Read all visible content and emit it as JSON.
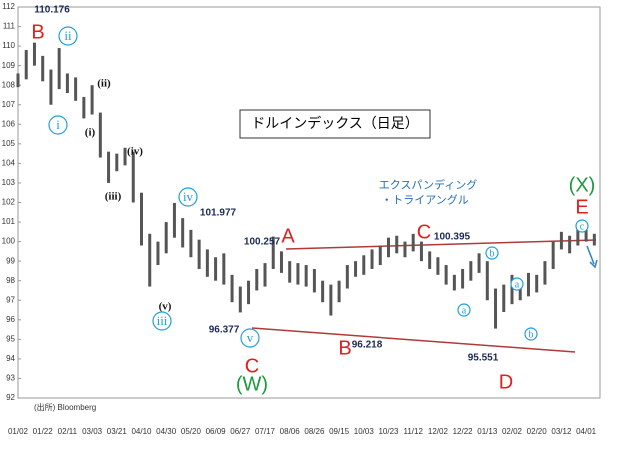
{
  "chart_data": {
    "type": "hilo",
    "title": "ドルインデックス（日足）",
    "note": [
      "エクスパンディング",
      "・トライアングル"
    ],
    "source": "(出所) Bloomberg",
    "color": "#555555",
    "categories": [
      "01/02",
      null,
      null,
      "01/22",
      null,
      null,
      "02/11",
      null,
      null,
      "03/03",
      null,
      null,
      "03/21",
      null,
      null,
      "04/10",
      null,
      null,
      "04/30",
      null,
      null,
      "05/20",
      null,
      null,
      "06/09",
      null,
      null,
      "06/27",
      null,
      null,
      "07/17",
      null,
      null,
      "08/06",
      null,
      null,
      "08/26",
      null,
      null,
      "09/15",
      null,
      null,
      "10/03",
      null,
      null,
      "10/23",
      null,
      null,
      "11/12",
      null,
      null,
      "12/02",
      null,
      null,
      "12/22",
      null,
      null,
      "01/13",
      null,
      null,
      "02/02",
      null,
      null,
      "02/20",
      null,
      null,
      "03/12",
      null,
      null,
      "04/01",
      null
    ],
    "series": [
      {
        "values": [
          108.6,
          109.8,
          110.176,
          109.5,
          108.8,
          109.9,
          108.6,
          108.4,
          107.4,
          108.0,
          106.6,
          104.6,
          104.5,
          104.8,
          104.6,
          102.5,
          100.4,
          100.0,
          101.0,
          101.977,
          101.2,
          100.6,
          100.1,
          99.6,
          99.2,
          99.4,
          98.3,
          97.7,
          98.0,
          98.6,
          98.9,
          100.257,
          99.5,
          99.0,
          98.9,
          98.8,
          98.6,
          98.0,
          97.8,
          98.0,
          98.8,
          99.0,
          99.3,
          99.6,
          99.8,
          100.2,
          100.3,
          100.0,
          100.395,
          100.0,
          99.5,
          99.2,
          98.8,
          98.3,
          98.6,
          99.0,
          99.4,
          99.0,
          97.6,
          97.8,
          98.3,
          97.8,
          98.4,
          98.3,
          99.0,
          100.0,
          100.5,
          100.3,
          100.8,
          100.6,
          100.4
        ]
      },
      {
        "values": [
          107.9,
          108.3,
          109.0,
          108.2,
          107.0,
          107.8,
          107.6,
          107.2,
          106.3,
          106.5,
          104.3,
          103.0,
          103.6,
          103.9,
          102.0,
          99.8,
          97.7,
          98.8,
          99.4,
          100.2,
          99.7,
          99.2,
          98.6,
          98.2,
          98.0,
          97.8,
          96.9,
          96.377,
          96.8,
          97.5,
          97.7,
          98.6,
          98.4,
          97.9,
          97.8,
          97.7,
          97.4,
          96.9,
          96.218,
          96.9,
          97.6,
          98.2,
          98.3,
          98.6,
          98.8,
          99.2,
          99.4,
          99.2,
          99.5,
          99.0,
          98.6,
          98.3,
          97.8,
          97.5,
          97.6,
          98.0,
          98.4,
          97.0,
          95.551,
          96.4,
          96.8,
          97.0,
          97.2,
          97.4,
          97.8,
          98.6,
          99.6,
          99.4,
          99.8,
          100.0,
          99.8
        ]
      }
    ],
    "ylim": [
      92,
      112
    ],
    "yticks": [
      92,
      93,
      94,
      95,
      96,
      97,
      98,
      99,
      100,
      101,
      102,
      103,
      104,
      105,
      106,
      107,
      108,
      109,
      110,
      111,
      112
    ],
    "annotations": [
      "B",
      "ii",
      "i",
      "(ii)",
      "(i)",
      "(iii)",
      "(iv)",
      "(v)",
      "iii",
      "iv",
      "v",
      "C",
      "(W)",
      "A",
      "B",
      "C",
      "D",
      "E",
      "(X)",
      "a",
      "b",
      "a",
      "b",
      "c"
    ]
  }
}
